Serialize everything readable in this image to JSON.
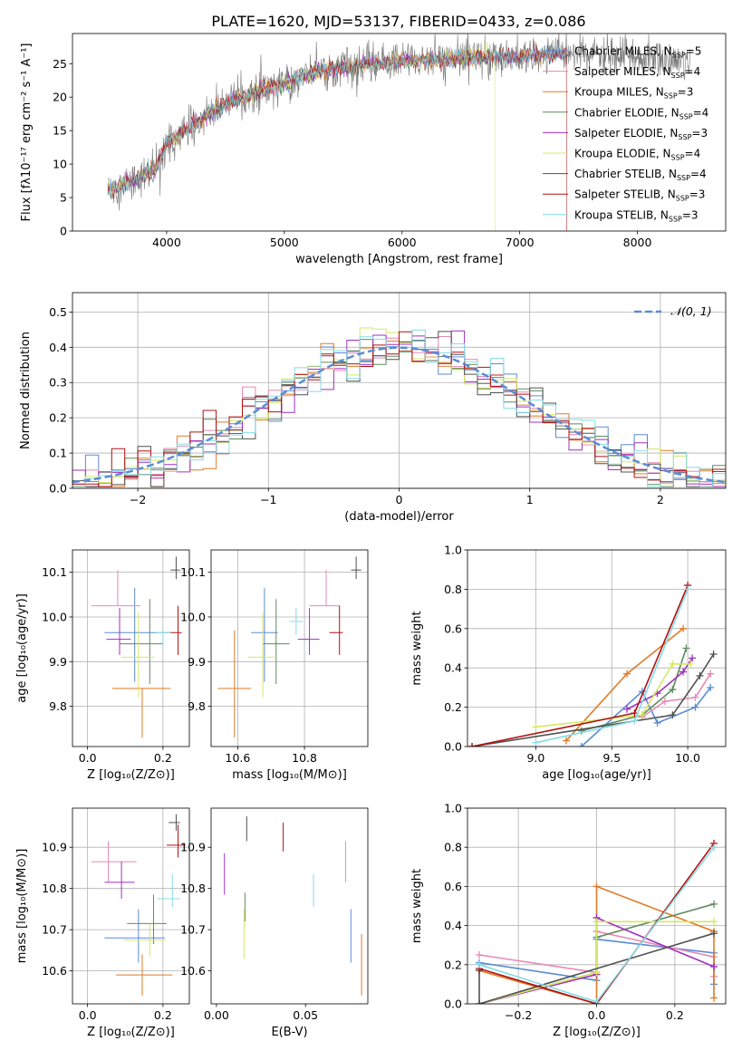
{
  "figure": {
    "suptitle": "PLATE=1620, MJD=53137, FIBERID=0433, z=0.086"
  },
  "models": [
    {
      "name": "Chabrier MILES",
      "nssp": "5",
      "color": "#5b8bd6"
    },
    {
      "name": "Salpeter MILES",
      "nssp": "4",
      "color": "#e889b4"
    },
    {
      "name": "Kroupa MILES",
      "nssp": "3",
      "color": "#e07b27"
    },
    {
      "name": "Chabrier ELODIE",
      "nssp": "4",
      "color": "#5e8a5e"
    },
    {
      "name": "Salpeter ELODIE",
      "nssp": "3",
      "color": "#a12fc0"
    },
    {
      "name": "Kroupa ELODIE",
      "nssp": "4",
      "color": "#d4e862"
    },
    {
      "name": "Chabrier STELIB",
      "nssp": "4",
      "color": "#505050"
    },
    {
      "name": "Salpeter STELIB",
      "nssp": "3",
      "color": "#b01010"
    },
    {
      "name": "Kroupa STELIB",
      "nssp": "3",
      "color": "#86dbe5"
    }
  ],
  "chart_data": [
    {
      "id": "spectrum",
      "type": "line",
      "xlabel": "wavelength [Angstrom, rest frame]",
      "ylabel": "Flux [fλ10⁻¹⁷ erg cm⁻² s⁻¹ A⁻¹]",
      "xlim": [
        3200,
        8750
      ],
      "ylim": [
        0,
        29.5
      ],
      "xticks": [
        4000,
        5000,
        6000,
        7000,
        8000
      ],
      "yticks": [
        0,
        5,
        10,
        15,
        20,
        25
      ],
      "grid": false,
      "legend": "right",
      "data_color": "#777777",
      "continuum": {
        "x": [
          3500,
          3700,
          3900,
          4000,
          4200,
          4500,
          4800,
          5000,
          5200,
          5500,
          5800,
          6000,
          6300,
          6600,
          7000,
          7300,
          7500,
          7800,
          8000,
          8300,
          8450
        ],
        "y": [
          6,
          7.5,
          9,
          13,
          15.5,
          19,
          21,
          22,
          23.5,
          24.5,
          25,
          25.5,
          25.5,
          26,
          26,
          26.5,
          26.5,
          26,
          26,
          25.5,
          25.5
        ]
      },
      "model_range": [
        3500,
        7400
      ]
    },
    {
      "id": "residuals",
      "type": "histogram",
      "xlabel": "(data-model)/error",
      "ylabel": "Normed distribution",
      "xlim": [
        -2.5,
        2.5
      ],
      "ylim": [
        0,
        0.555
      ],
      "xticks": [
        -2,
        -1,
        0,
        1,
        2
      ],
      "yticks": [
        0.0,
        0.1,
        0.2,
        0.3,
        0.4,
        0.5
      ],
      "grid": true,
      "legend": "top-right",
      "gaussian_label": "𝒩(0, 1)",
      "gaussian_color": "#5b8bd6",
      "bin_width": 0.1
    },
    {
      "id": "age_vs_Z",
      "type": "scatter",
      "xlabel": "Z [log₁₀(Z/Z⊙)]",
      "ylabel": "age  [log₁₀(age/yr)]",
      "xlim": [
        -0.04,
        0.27
      ],
      "ylim": [
        9.71,
        10.15
      ],
      "xticks": [
        0.0,
        0.2
      ],
      "yticks": [
        9.8,
        9.9,
        10.0,
        10.1
      ],
      "grid": true,
      "points": [
        {
          "x": 0.125,
          "y": 9.965,
          "xerr": [
            0.08,
            0.095
          ],
          "yerr": [
            0.11,
            0.1
          ]
        },
        {
          "x": 0.08,
          "y": 10.025,
          "xerr": [
            0.07,
            0.06
          ],
          "yerr": [
            0.0,
            0.08
          ]
        },
        {
          "x": 0.145,
          "y": 9.84,
          "xerr": [
            0.08,
            0.075
          ],
          "yerr": [
            0.11,
            0.0
          ]
        },
        {
          "x": 0.165,
          "y": 9.94,
          "xerr": [
            0.08,
            0.035
          ],
          "yerr": [
            0.09,
            0.1
          ]
        },
        {
          "x": 0.085,
          "y": 9.95,
          "xerr": [
            0.035,
            0.03
          ],
          "yerr": [
            0.035,
            0.07
          ]
        },
        {
          "x": 0.135,
          "y": 9.91,
          "xerr": [
            0.045,
            0.04
          ],
          "yerr": [
            0.09,
            0.1
          ]
        },
        {
          "x": 0.235,
          "y": 10.105,
          "xerr": [
            0.015,
            0.01
          ],
          "yerr": [
            0.02,
            0.03
          ]
        },
        {
          "x": 0.24,
          "y": 9.965,
          "xerr": [
            0.02,
            0.01
          ],
          "yerr": [
            0.05,
            0.06
          ]
        },
        {
          "x": 0.2,
          "y": 9.965,
          "xerr": [
            0.02,
            0.02
          ],
          "yerr": [
            0.03,
            0.0
          ]
        }
      ]
    },
    {
      "id": "age_vs_mass",
      "type": "scatter",
      "xlabel": "mass [log₁₀(M/M⊙)]",
      "ylabel": "",
      "xlim": [
        10.52,
        10.99
      ],
      "ylim": [
        9.71,
        10.15
      ],
      "xticks": [
        10.6,
        10.8
      ],
      "yticks": [
        9.8,
        9.9,
        10.0,
        10.1
      ],
      "grid": true,
      "points": [
        {
          "x": 10.68,
          "y": 9.965,
          "xerr": [
            0.04,
            0.04
          ],
          "yerr": [
            0.11,
            0.1
          ]
        },
        {
          "x": 10.865,
          "y": 10.025,
          "xerr": [
            0.05,
            0.04
          ],
          "yerr": [
            0.0,
            0.08
          ]
        },
        {
          "x": 10.59,
          "y": 9.84,
          "xerr": [
            0.05,
            0.05
          ],
          "yerr": [
            0.11,
            0.13
          ]
        },
        {
          "x": 10.715,
          "y": 9.94,
          "xerr": [
            0.04,
            0.04
          ],
          "yerr": [
            0.09,
            0.1
          ]
        },
        {
          "x": 10.815,
          "y": 9.95,
          "xerr": [
            0.035,
            0.03
          ],
          "yerr": [
            0.035,
            0.07
          ]
        },
        {
          "x": 10.675,
          "y": 9.91,
          "xerr": [
            0.045,
            0.04
          ],
          "yerr": [
            0.09,
            0.1
          ]
        },
        {
          "x": 10.955,
          "y": 10.105,
          "xerr": [
            0.015,
            0.015
          ],
          "yerr": [
            0.02,
            0.03
          ]
        },
        {
          "x": 10.905,
          "y": 9.965,
          "xerr": [
            0.03,
            0.01
          ],
          "yerr": [
            0.05,
            0.06
          ]
        },
        {
          "x": 10.775,
          "y": 9.99,
          "xerr": [
            0.02,
            0.02
          ],
          "yerr": [
            0.03,
            0.03
          ]
        }
      ]
    },
    {
      "id": "weight_vs_age",
      "type": "line",
      "xlabel": "age  [log₁₀(age/yr)]",
      "ylabel": "mass weight",
      "xlim": [
        8.55,
        10.25
      ],
      "ylim": [
        0,
        1.0
      ],
      "xticks": [
        9.0,
        9.5,
        10.0
      ],
      "yticks": [
        0.0,
        0.2,
        0.4,
        0.6,
        0.8,
        1.0
      ],
      "grid": true,
      "series": [
        {
          "x": [
            9.3,
            9.7,
            9.8,
            10.05,
            10.15
          ],
          "y": [
            0.0,
            0.28,
            0.12,
            0.2,
            0.3
          ]
        },
        {
          "x": [
            9.7,
            9.85,
            10.05,
            10.15
          ],
          "y": [
            0.15,
            0.23,
            0.25,
            0.37
          ]
        },
        {
          "x": [
            9.2,
            9.6,
            9.97
          ],
          "y": [
            0.03,
            0.37,
            0.6
          ]
        },
        {
          "x": [
            9.3,
            9.7,
            9.9,
            9.99
          ],
          "y": [
            0.08,
            0.16,
            0.29,
            0.5
          ]
        },
        {
          "x": [
            9.6,
            9.8,
            9.97,
            10.03
          ],
          "y": [
            0.19,
            0.27,
            0.38,
            0.45
          ]
        },
        {
          "x": [
            9.0,
            9.7,
            9.9,
            10.02
          ],
          "y": [
            0.1,
            0.16,
            0.42,
            0.42
          ]
        },
        {
          "x": [
            8.58,
            9.9,
            10.08,
            10.17
          ],
          "y": [
            0.0,
            0.16,
            0.36,
            0.47
          ]
        },
        {
          "x": [
            8.58,
            9.65,
            10.0
          ],
          "y": [
            0.0,
            0.17,
            0.82
          ]
        },
        {
          "x": [
            9.0,
            9.65,
            10.0
          ],
          "y": [
            0.02,
            0.13,
            0.8
          ]
        }
      ]
    },
    {
      "id": "mass_vs_Z",
      "type": "scatter",
      "xlabel": "Z [log₁₀(Z/Z⊙)]",
      "ylabel": "mass [log₁₀(M/M⊙)]",
      "xlim": [
        -0.04,
        0.27
      ],
      "ylim": [
        10.52,
        10.995
      ],
      "xticks": [
        0.0,
        0.2
      ],
      "yticks": [
        10.6,
        10.7,
        10.8,
        10.9
      ],
      "grid": true,
      "points": [
        {
          "x": 0.135,
          "y": 10.68,
          "xerr": [
            0.09,
            0.07
          ],
          "yerr": [
            0.06,
            0.07
          ]
        },
        {
          "x": 0.055,
          "y": 10.865,
          "xerr": [
            0.045,
            0.075
          ],
          "yerr": [
            0.05,
            0.05
          ]
        },
        {
          "x": 0.145,
          "y": 10.59,
          "xerr": [
            0.07,
            0.08
          ],
          "yerr": [
            0.05,
            0.05
          ]
        },
        {
          "x": 0.175,
          "y": 10.715,
          "xerr": [
            0.07,
            0.035
          ],
          "yerr": [
            0.05,
            0.07
          ]
        },
        {
          "x": 0.09,
          "y": 10.815,
          "xerr": [
            0.045,
            0.035
          ],
          "yerr": [
            0.04,
            0.05
          ]
        },
        {
          "x": 0.165,
          "y": 10.675,
          "xerr": [
            0.07,
            0.04
          ],
          "yerr": [
            0.04,
            0.04
          ]
        },
        {
          "x": 0.235,
          "y": 10.96,
          "xerr": [
            0.02,
            0.01
          ],
          "yerr": [
            0.02,
            0.02
          ]
        },
        {
          "x": 0.24,
          "y": 10.905,
          "xerr": [
            0.03,
            0.02
          ],
          "yerr": [
            0.03,
            0.05
          ]
        },
        {
          "x": 0.225,
          "y": 10.775,
          "xerr": [
            0.04,
            0.02
          ],
          "yerr": [
            0.02,
            0.06
          ]
        }
      ]
    },
    {
      "id": "mass_vs_EBV",
      "type": "scatter",
      "xlabel": "E(B-V)",
      "ylabel": "",
      "xlim": [
        -0.003,
        0.085
      ],
      "ylim": [
        10.52,
        10.995
      ],
      "xticks": [
        0.0,
        0.05
      ],
      "yticks": [
        10.6,
        10.7,
        10.8,
        10.9
      ],
      "grid": false,
      "points": [
        {
          "x": 0.0755,
          "y": 10.68,
          "yerr": [
            0.06,
            0.07
          ]
        },
        {
          "x": 0.0725,
          "y": 10.865,
          "yerr": [
            0.05,
            0.05
          ]
        },
        {
          "x": 0.0815,
          "y": 10.61,
          "yerr": [
            0.07,
            0.08
          ]
        },
        {
          "x": 0.016,
          "y": 10.75,
          "yerr": [
            0.03,
            0.04
          ]
        },
        {
          "x": 0.0045,
          "y": 10.835,
          "yerr": [
            0.05,
            0.05
          ]
        },
        {
          "x": 0.0155,
          "y": 10.69,
          "yerr": [
            0.06,
            0.06
          ]
        },
        {
          "x": 0.017,
          "y": 10.945,
          "yerr": [
            0.03,
            0.03
          ]
        },
        {
          "x": 0.0375,
          "y": 10.92,
          "yerr": [
            0.03,
            0.04
          ]
        },
        {
          "x": 0.0545,
          "y": 10.795,
          "yerr": [
            0.04,
            0.04
          ]
        }
      ]
    },
    {
      "id": "weight_vs_Z",
      "type": "line",
      "xlabel": "Z [log₁₀(Z/Z⊙)]",
      "ylabel": "mass weight",
      "xlim": [
        -0.33,
        0.33
      ],
      "ylim": [
        0,
        1.0
      ],
      "xticks": [
        -0.2,
        0.0,
        0.2
      ],
      "yticks": [
        0.0,
        0.2,
        0.4,
        0.6,
        0.8,
        1.0
      ],
      "grid": true,
      "series": [
        {
          "x": [
            -0.3,
            0.0,
            0.0,
            0.3,
            0.3
          ],
          "y": [
            0.21,
            0.12,
            0.33,
            0.26,
            0.1
          ]
        },
        {
          "x": [
            -0.3,
            0.0,
            0.0,
            0.3,
            0.3
          ],
          "y": [
            0.25,
            0.16,
            0.37,
            0.24,
            0.14
          ]
        },
        {
          "x": [
            -0.3,
            0.0,
            0.0,
            0.3,
            0.3
          ],
          "y": [
            0.17,
            0.0,
            0.6,
            0.37,
            0.03
          ]
        },
        {
          "x": [
            -0.3,
            0.0,
            0.0,
            0.3
          ],
          "y": [
            0.0,
            0.16,
            0.34,
            0.51
          ]
        },
        {
          "x": [
            -0.3,
            0.0,
            0.0,
            0.3
          ],
          "y": [
            0.0,
            0.15,
            0.44,
            0.19
          ]
        },
        {
          "x": [
            -0.3,
            0.0,
            0.0,
            0.3
          ],
          "y": [
            0.0,
            0.16,
            0.42,
            0.42
          ]
        },
        {
          "x": [
            -0.3,
            -0.3,
            0.3
          ],
          "y": [
            0.17,
            0.0,
            0.36
          ]
        },
        {
          "x": [
            -0.3,
            0.0,
            0.3
          ],
          "y": [
            0.18,
            0.0,
            0.82
          ]
        },
        {
          "x": [
            -0.3,
            0.0,
            0.3
          ],
          "y": [
            0.2,
            0.01,
            0.8
          ]
        }
      ]
    }
  ]
}
